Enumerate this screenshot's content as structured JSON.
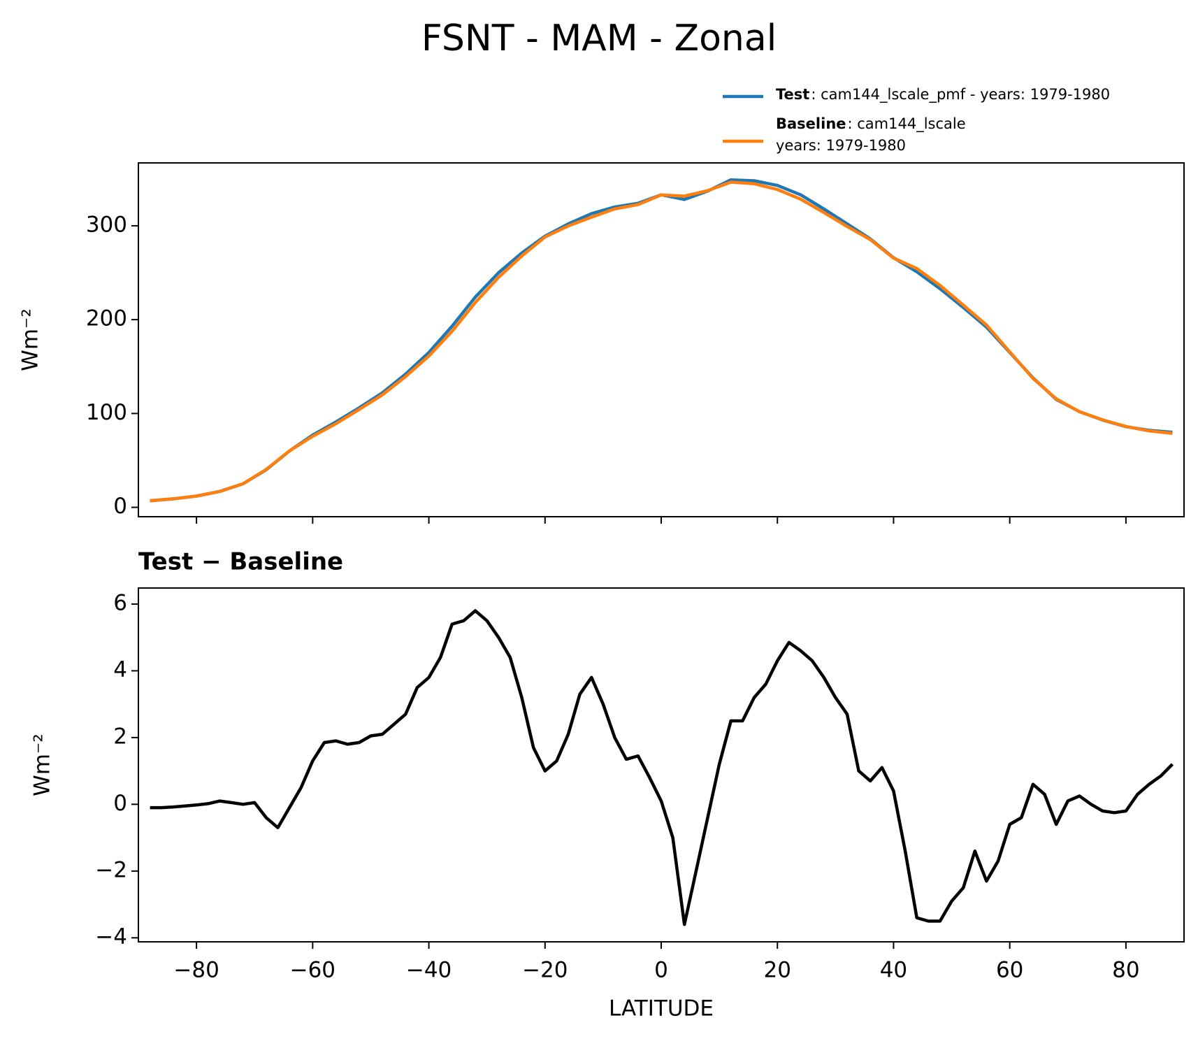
{
  "chart_data": [
    {
      "type": "line",
      "title": "FSNT - MAM - Zonal",
      "ylabel": "Wm⁻²",
      "x": [
        -88,
        -84,
        -80,
        -76,
        -72,
        -68,
        -64,
        -60,
        -56,
        -52,
        -48,
        -44,
        -40,
        -36,
        -32,
        -28,
        -24,
        -20,
        -16,
        -12,
        -8,
        -4,
        0,
        4,
        8,
        12,
        16,
        20,
        24,
        28,
        32,
        36,
        40,
        44,
        48,
        52,
        56,
        60,
        64,
        68,
        72,
        76,
        80,
        84,
        88
      ],
      "series": [
        {
          "name": "Test",
          "description": [
            ": cam144_lscale_pmf - years: 1979-1980"
          ],
          "color": "#1f77b4",
          "values": [
            7,
            9,
            12,
            17,
            25,
            40,
            60,
            77,
            91,
            106,
            122,
            142,
            165,
            193,
            224,
            250,
            271,
            289,
            302,
            313,
            320,
            324,
            333,
            328,
            337,
            349,
            348,
            343,
            333,
            318,
            302,
            286,
            266,
            251,
            233,
            213,
            192,
            165,
            138,
            115,
            102,
            93,
            86,
            82,
            80
          ]
        },
        {
          "name": "Baseline",
          "description": [
            ": cam144_lscale",
            "years: 1979-1980"
          ],
          "color": "#ff7f0e",
          "values": [
            7.1,
            9.1,
            12,
            16.9,
            25,
            40.4,
            60.1,
            75.7,
            89.1,
            104.2,
            119.9,
            139.3,
            161.2,
            187.6,
            218.2,
            245,
            267.8,
            288,
            299.9,
            309.2,
            318,
            322.6,
            332.9,
            331.6,
            337.4,
            346.5,
            344.8,
            338.7,
            328.4,
            314.2,
            299.3,
            285.3,
            265.6,
            254.4,
            236.5,
            215.5,
            194.3,
            165.6,
            137.4,
            115.6,
            101.8,
            93.2,
            86.2,
            81.4,
            78.8
          ]
        }
      ],
      "xlim": [
        -90,
        90
      ],
      "xticks": [
        -80,
        -60,
        -40,
        -20,
        0,
        20,
        40,
        60,
        80
      ],
      "show_xtick_labels": false,
      "ylim": [
        -10,
        367
      ],
      "yticks": [
        0,
        100,
        200,
        300
      ],
      "legend": "upper right"
    },
    {
      "type": "line",
      "title": "Test − Baseline",
      "ylabel": "Wm⁻²",
      "xlabel": "LATITUDE",
      "x": [
        -88,
        -86,
        -84,
        -82,
        -80,
        -78,
        -76,
        -74,
        -72,
        -70,
        -68,
        -66,
        -64,
        -62,
        -60,
        -58,
        -56,
        -54,
        -52,
        -50,
        -48,
        -46,
        -44,
        -42,
        -40,
        -38,
        -36,
        -34,
        -32,
        -30,
        -28,
        -26,
        -24,
        -22,
        -20,
        -18,
        -16,
        -14,
        -12,
        -10,
        -8,
        -6,
        -4,
        -2,
        0,
        2,
        4,
        6,
        8,
        10,
        12,
        14,
        16,
        18,
        20,
        22,
        24,
        26,
        28,
        30,
        32,
        34,
        36,
        38,
        40,
        42,
        44,
        46,
        48,
        50,
        52,
        54,
        56,
        58,
        60,
        62,
        64,
        66,
        68,
        70,
        72,
        74,
        76,
        78,
        80,
        82,
        84,
        86,
        88
      ],
      "series": [
        {
          "name": "Test − Baseline",
          "color": "#000000",
          "values": [
            -0.1,
            -0.1,
            -0.08,
            -0.05,
            -0.02,
            0.02,
            0.1,
            0.05,
            0.0,
            0.05,
            -0.4,
            -0.7,
            -0.1,
            0.5,
            1.3,
            1.85,
            1.9,
            1.8,
            1.85,
            2.05,
            2.1,
            2.4,
            2.7,
            3.5,
            3.8,
            4.4,
            5.4,
            5.5,
            5.8,
            5.5,
            5.0,
            4.4,
            3.2,
            1.7,
            1.0,
            1.3,
            2.1,
            3.3,
            3.8,
            3.0,
            2.0,
            1.35,
            1.45,
            0.8,
            0.1,
            -1.0,
            -3.6,
            -2.0,
            -0.4,
            1.2,
            2.5,
            2.5,
            3.2,
            3.6,
            4.3,
            4.85,
            4.6,
            4.3,
            3.8,
            3.2,
            2.7,
            1.0,
            0.7,
            1.1,
            0.4,
            -1.4,
            -3.4,
            -3.5,
            -3.5,
            -2.9,
            -2.5,
            -1.4,
            -2.3,
            -1.7,
            -0.6,
            -0.4,
            0.6,
            0.3,
            -0.6,
            0.1,
            0.25,
            0.0,
            -0.2,
            -0.25,
            -0.2,
            0.3,
            0.6,
            0.85,
            1.2
          ]
        }
      ],
      "xlim": [
        -90,
        90
      ],
      "xticks": [
        {
          "value": -80,
          "label": "−80"
        },
        {
          "value": -60,
          "label": "−60"
        },
        {
          "value": -40,
          "label": "−40"
        },
        {
          "value": -20,
          "label": "−20"
        },
        0,
        20,
        40,
        60,
        80
      ],
      "show_xtick_labels": true,
      "ylim": [
        -4.12,
        6.48
      ],
      "yticks": [
        {
          "value": -4,
          "label": "−4"
        },
        {
          "value": -2,
          "label": "−2"
        },
        0,
        2,
        4,
        6
      ]
    }
  ]
}
